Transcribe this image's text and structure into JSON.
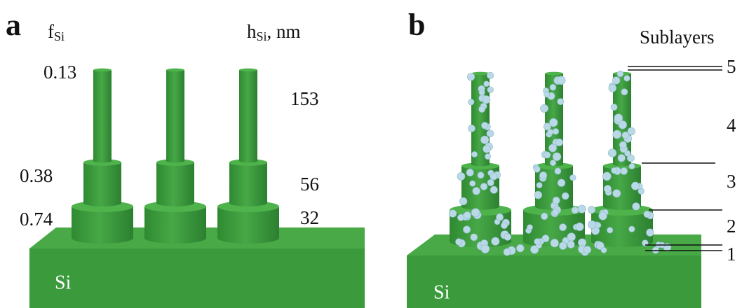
{
  "panel_a": {
    "label": "a",
    "fraction_label": {
      "symbol": "f",
      "subscript": "Si"
    },
    "height_label": {
      "symbol": "h",
      "subscript": "Si",
      "unit": ", nm"
    },
    "fractions": [
      "0.13",
      "0.38",
      "0.74"
    ],
    "heights": [
      "153",
      "56",
      "32"
    ],
    "substrate": "Si"
  },
  "panel_b": {
    "label": "b",
    "sublayers_title": "Sublayers",
    "sublayers": [
      "5",
      "4",
      "3",
      "2",
      "1"
    ],
    "substrate": "Si"
  }
}
